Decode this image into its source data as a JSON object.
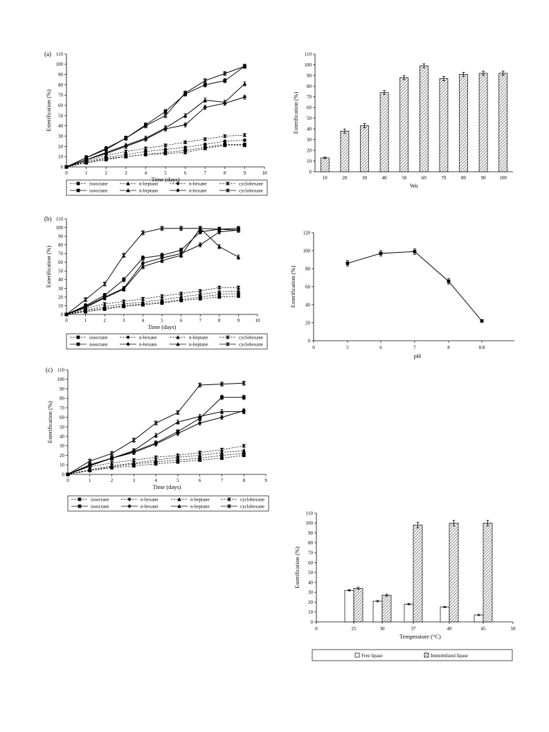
{
  "chart_data": [
    {
      "id": "a",
      "type": "line",
      "panel_label": "(a)",
      "xlabel": "Time (days)",
      "ylabel": "Esterification (%)",
      "xlim": [
        0,
        10
      ],
      "ylim": [
        0,
        110
      ],
      "xticks": [
        0,
        1,
        2,
        3,
        4,
        5,
        6,
        7,
        8,
        9,
        10
      ],
      "yticks": [
        0,
        10,
        20,
        30,
        40,
        50,
        60,
        70,
        80,
        90,
        100,
        110
      ],
      "x": [
        0,
        1,
        2,
        3,
        4,
        5,
        6,
        7,
        8,
        9
      ],
      "series": [
        {
          "name": "isooctane",
          "style": "dashed",
          "marker": "square",
          "values": [
            0,
            4,
            8,
            10,
            12,
            14,
            16,
            19,
            22,
            22
          ]
        },
        {
          "name": "n-heptane",
          "style": "dashed",
          "marker": "triangle",
          "values": [
            0,
            4,
            7,
            10,
            12,
            13,
            14,
            18,
            21,
            21
          ]
        },
        {
          "name": "n-hexane",
          "style": "dashed",
          "marker": "diamond",
          "values": [
            0,
            5,
            9,
            12,
            15,
            17,
            19,
            22,
            25,
            26
          ]
        },
        {
          "name": "cyclohexane",
          "style": "dashed",
          "marker": "star",
          "values": [
            0,
            6,
            11,
            15,
            18,
            21,
            24,
            27,
            30,
            31
          ]
        },
        {
          "name": "isooctane",
          "style": "solid",
          "marker": "square",
          "values": [
            0,
            9,
            17,
            28,
            41,
            54,
            71,
            80,
            84,
            98
          ]
        },
        {
          "name": "n-heptane",
          "style": "solid",
          "marker": "triangle",
          "values": [
            0,
            7,
            14,
            21,
            28,
            38,
            50,
            65,
            63,
            81
          ]
        },
        {
          "name": "n-hexane",
          "style": "solid",
          "marker": "diamond",
          "values": [
            0,
            7,
            13,
            20,
            27,
            37,
            41,
            58,
            62,
            68
          ]
        },
        {
          "name": "cyclohexane",
          "style": "solid",
          "marker": "star",
          "values": [
            0,
            9,
            18,
            28,
            40,
            50,
            72,
            84,
            91,
            98
          ]
        }
      ],
      "legend": [
        [
          "isooctane",
          "n-heptane",
          "n-hexane",
          "cyclohexane"
        ],
        [
          "isooctane",
          "n-heptane",
          "n-hexane",
          "cyclohexane"
        ]
      ]
    },
    {
      "id": "b",
      "type": "line",
      "panel_label": "(b)",
      "xlabel": "Time (days)",
      "ylabel": "Esterification (%)",
      "xlim": [
        0,
        10
      ],
      "ylim": [
        0,
        110
      ],
      "xticks": [
        0,
        1,
        2,
        3,
        4,
        5,
        6,
        7,
        8,
        9,
        10
      ],
      "yticks": [
        0,
        10,
        20,
        30,
        40,
        50,
        60,
        70,
        80,
        90,
        100,
        110
      ],
      "x": [
        0,
        1,
        2,
        3,
        4,
        5,
        6,
        7,
        8,
        9
      ],
      "series": [
        {
          "name": "isooctane",
          "style": "dashed",
          "marker": "square",
          "values": [
            0,
            3,
            6,
            9,
            11,
            13,
            16,
            18,
            20,
            21
          ]
        },
        {
          "name": "n-hexane",
          "style": "dashed",
          "marker": "diamond",
          "values": [
            0,
            4,
            7,
            10,
            12,
            14,
            17,
            20,
            23,
            24
          ]
        },
        {
          "name": "n-heptane",
          "style": "dashed",
          "marker": "triangle",
          "values": [
            0,
            5,
            9,
            12,
            14,
            17,
            20,
            23,
            26,
            27
          ]
        },
        {
          "name": "cyclohexane",
          "style": "dashed",
          "marker": "star",
          "values": [
            0,
            7,
            12,
            15,
            18,
            21,
            24,
            27,
            31,
            31
          ]
        },
        {
          "name": "isooctane",
          "style": "solid",
          "marker": "square",
          "values": [
            0,
            10,
            22,
            40,
            65,
            68,
            74,
            95,
            98,
            99
          ]
        },
        {
          "name": "n-hexane",
          "style": "solid",
          "marker": "diamond",
          "values": [
            0,
            9,
            20,
            30,
            59,
            65,
            70,
            80,
            95,
            97
          ]
        },
        {
          "name": "n-heptane",
          "style": "solid",
          "marker": "triangle",
          "values": [
            0,
            8,
            19,
            29,
            55,
            62,
            68,
            99,
            78,
            66
          ]
        },
        {
          "name": "cyclohexane",
          "style": "solid",
          "marker": "star",
          "values": [
            0,
            17,
            35,
            68,
            94,
            99,
            99,
            99,
            98,
            97
          ]
        }
      ],
      "legend": [
        [
          "isooctane",
          "n-hexane",
          "n-heptane",
          "cyclohexane"
        ],
        [
          "isooctane",
          "n-hexane",
          "n-heptane",
          "cyclohexane"
        ]
      ]
    },
    {
      "id": "c",
      "type": "line",
      "panel_label": "(c)",
      "xlabel": "Time (days)",
      "ylabel": "Esterification (%)",
      "xlim": [
        0,
        9
      ],
      "ylim": [
        0,
        110
      ],
      "xticks": [
        0,
        1,
        2,
        3,
        4,
        5,
        6,
        7,
        8,
        9
      ],
      "yticks": [
        0,
        10,
        20,
        30,
        40,
        50,
        60,
        70,
        80,
        90,
        100,
        110
      ],
      "x": [
        0,
        1,
        2,
        3,
        4,
        5,
        6,
        7,
        8
      ],
      "series": [
        {
          "name": "isooctane",
          "style": "dashed",
          "marker": "square",
          "values": [
            0,
            4,
            7,
            9,
            11,
            13,
            15,
            17,
            20
          ]
        },
        {
          "name": "n-hexane",
          "style": "dashed",
          "marker": "diamond",
          "values": [
            0,
            4,
            8,
            11,
            13,
            15,
            17,
            20,
            22
          ]
        },
        {
          "name": "n-heptane",
          "style": "dashed",
          "marker": "triangle",
          "values": [
            0,
            5,
            9,
            12,
            15,
            18,
            20,
            23,
            25
          ]
        },
        {
          "name": "cyclohexane",
          "style": "dashed",
          "marker": "star",
          "values": [
            0,
            8,
            12,
            15,
            18,
            20,
            23,
            26,
            30
          ]
        },
        {
          "name": "isooctane",
          "style": "solid",
          "marker": "square",
          "values": [
            0,
            10,
            17,
            24,
            33,
            45,
            59,
            81,
            81
          ]
        },
        {
          "name": "n-hexane",
          "style": "solid",
          "marker": "diamond",
          "values": [
            0,
            9,
            17,
            23,
            32,
            43,
            54,
            60,
            67
          ]
        },
        {
          "name": "n-heptane",
          "style": "solid",
          "marker": "triangle",
          "values": [
            0,
            10,
            17,
            25,
            41,
            55,
            61,
            66,
            66
          ]
        },
        {
          "name": "cyclohexane",
          "style": "solid",
          "marker": "star",
          "values": [
            0,
            14,
            22,
            36,
            54,
            65,
            94,
            95,
            96
          ]
        }
      ],
      "legend": [
        [
          "isooctane",
          "n-hexane",
          "n-heptane",
          "cyclohexane"
        ],
        [
          "isooctane",
          "n-hexane",
          "n-heptane",
          "cyclohexane"
        ]
      ]
    },
    {
      "id": "wo",
      "type": "bar",
      "xlabel": "Wo",
      "ylabel": "Esterification (%)",
      "ylim": [
        0,
        110
      ],
      "yticks": [
        0,
        10,
        20,
        30,
        40,
        50,
        60,
        70,
        80,
        90,
        100,
        110
      ],
      "categories": [
        "10",
        "20",
        "30",
        "40",
        "50",
        "60",
        "70",
        "80",
        "90",
        "100"
      ],
      "values": [
        13,
        38,
        43,
        74,
        88,
        99,
        87,
        91,
        92,
        92
      ]
    },
    {
      "id": "ph",
      "type": "line",
      "xlabel": "pH",
      "ylabel": "Esterification (%)",
      "ylim": [
        0,
        120
      ],
      "yticks": [
        0,
        20,
        40,
        60,
        80,
        100,
        120
      ],
      "xticks": [
        "0",
        "5",
        "6",
        "7",
        "8",
        "8.8"
      ],
      "categories": [
        "5",
        "6",
        "7",
        "8",
        "8.8"
      ],
      "values": [
        86,
        97,
        99,
        66,
        22
      ]
    },
    {
      "id": "temp",
      "type": "bar",
      "xlabel": "Temperature (°C)",
      "ylabel": "Esterification (%)",
      "ylim": [
        0,
        110
      ],
      "yticks": [
        0,
        10,
        20,
        30,
        40,
        50,
        60,
        70,
        80,
        90,
        100,
        110
      ],
      "xticks": [
        "0",
        "25",
        "30",
        "37",
        "40",
        "45",
        "50"
      ],
      "categories": [
        "25",
        "30",
        "37",
        "40",
        "45"
      ],
      "series": [
        {
          "name": "Free lipase",
          "values": [
            32,
            21,
            18,
            15,
            7
          ]
        },
        {
          "name": "Immobilized lipase",
          "values": [
            34,
            27,
            98,
            100,
            100
          ]
        }
      ]
    }
  ]
}
